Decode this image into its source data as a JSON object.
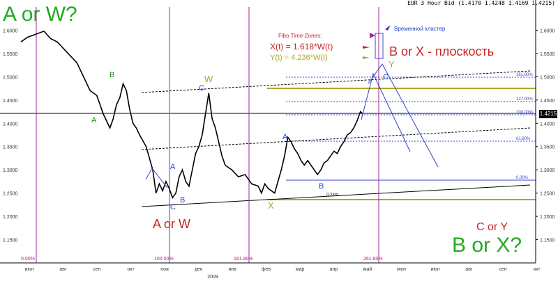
{
  "header": {
    "text": "EUR 3 Hour Bid (1.4170 1.4248 1.4169 1.4215)"
  },
  "last_price": "1.4215",
  "annotations": {
    "a_or_w_top": "A or W?",
    "a_or_w_mid": "A or W",
    "b_or_x_flat": "B or X - плоскость",
    "c_or_y": "C or Y",
    "b_or_x_bottom": "B or X?",
    "time_cluster": "Временной кластер",
    "fibo_tz": "Fibo Time-Zones:",
    "x_formula": "X(t) = 1.618*W(t)",
    "y_formula": "Y(t) = 4.236*W(t)"
  },
  "wave_labels": [
    {
      "t": "B",
      "c": "#1f8a1f"
    },
    {
      "t": "A",
      "c": "#1f8a1f"
    },
    {
      "t": "A",
      "c": "#2244cc"
    },
    {
      "t": "B",
      "c": "#2244cc"
    },
    {
      "t": "C",
      "c": "#2244cc"
    },
    {
      "t": "W",
      "c": "#aaaa22"
    },
    {
      "t": "C",
      "c": "#2244cc"
    },
    {
      "t": "X",
      "c": "#aaaa22"
    },
    {
      "t": "A",
      "c": "#2244cc"
    },
    {
      "t": "B",
      "c": "#2244cc"
    },
    {
      "t": "C",
      "c": "#2244cc"
    },
    {
      "t": "Y",
      "c": "#aaaa22"
    }
  ],
  "fib_levels": [
    "161.80%",
    "127.00%",
    "100.00%",
    "61.80%",
    "0.00%",
    "100.00%"
  ],
  "time_zone_labels": [
    "0.00%",
    "100.00%",
    "161.80%",
    "261.80%"
  ],
  "small_label": "0.2331",
  "chart_data": {
    "type": "line",
    "title": "EUR 3 Hour Bid",
    "ylim": [
      1.1,
      1.65
    ],
    "y_ticks": [
      "1.6000",
      "1.5500",
      "1.5000",
      "1.4500",
      "1.4000",
      "1.3500",
      "1.3000",
      "1.2500",
      "1.2000",
      "1.1500"
    ],
    "x_ticks": [
      "июл",
      "авг",
      "сен",
      "окт",
      "ноя",
      "дек",
      "янв",
      "фев",
      "мар",
      "апр",
      "май",
      "июн",
      "июл",
      "авг",
      "сен",
      "окт"
    ],
    "year_label": "2009",
    "last_value": 1.4215,
    "series": [
      {
        "values": [
          [
            0,
            1.575
          ],
          [
            10,
            1.585
          ],
          [
            20,
            1.59
          ],
          [
            35,
            1.598
          ],
          [
            45,
            1.582
          ],
          [
            55,
            1.575
          ],
          [
            65,
            1.56
          ],
          [
            75,
            1.545
          ],
          [
            85,
            1.53
          ],
          [
            95,
            1.5
          ],
          [
            105,
            1.47
          ],
          [
            115,
            1.46
          ],
          [
            125,
            1.42
          ],
          [
            135,
            1.39
          ],
          [
            140,
            1.41
          ],
          [
            145,
            1.44
          ],
          [
            150,
            1.455
          ],
          [
            155,
            1.485
          ],
          [
            160,
            1.47
          ],
          [
            165,
            1.43
          ],
          [
            170,
            1.4
          ],
          [
            175,
            1.39
          ],
          [
            180,
            1.375
          ],
          [
            190,
            1.35
          ],
          [
            200,
            1.3
          ],
          [
            205,
            1.25
          ],
          [
            210,
            1.27
          ],
          [
            215,
            1.255
          ],
          [
            220,
            1.275
          ],
          [
            225,
            1.26
          ],
          [
            230,
            1.24
          ],
          [
            235,
            1.25
          ],
          [
            240,
            1.285
          ],
          [
            245,
            1.3
          ],
          [
            250,
            1.275
          ],
          [
            255,
            1.265
          ],
          [
            260,
            1.3
          ],
          [
            265,
            1.335
          ],
          [
            270,
            1.35
          ],
          [
            275,
            1.375
          ],
          [
            280,
            1.42
          ],
          [
            285,
            1.465
          ],
          [
            290,
            1.41
          ],
          [
            295,
            1.39
          ],
          [
            300,
            1.36
          ],
          [
            305,
            1.33
          ],
          [
            310,
            1.31
          ],
          [
            320,
            1.3
          ],
          [
            330,
            1.285
          ],
          [
            340,
            1.29
          ],
          [
            350,
            1.27
          ],
          [
            360,
            1.265
          ],
          [
            365,
            1.25
          ],
          [
            370,
            1.27
          ],
          [
            375,
            1.26
          ],
          [
            380,
            1.255
          ],
          [
            385,
            1.25
          ],
          [
            390,
            1.275
          ],
          [
            395,
            1.3
          ],
          [
            400,
            1.33
          ],
          [
            405,
            1.37
          ],
          [
            410,
            1.36
          ],
          [
            415,
            1.345
          ],
          [
            420,
            1.335
          ],
          [
            425,
            1.32
          ],
          [
            430,
            1.31
          ],
          [
            435,
            1.32
          ],
          [
            440,
            1.31
          ],
          [
            445,
            1.3
          ],
          [
            450,
            1.29
          ],
          [
            455,
            1.3
          ],
          [
            460,
            1.315
          ],
          [
            465,
            1.32
          ],
          [
            470,
            1.33
          ],
          [
            475,
            1.34
          ],
          [
            480,
            1.335
          ],
          [
            485,
            1.35
          ],
          [
            490,
            1.36
          ],
          [
            495,
            1.375
          ],
          [
            500,
            1.38
          ],
          [
            505,
            1.39
          ],
          [
            510,
            1.405
          ],
          [
            515,
            1.425
          ],
          [
            518,
            1.4215
          ]
        ]
      }
    ]
  }
}
